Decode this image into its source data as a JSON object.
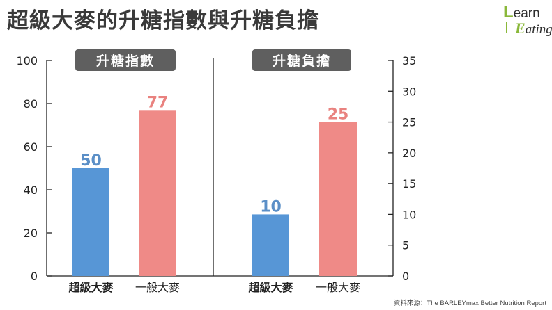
{
  "title": "超級大麥的升糖指數與升糖負擔",
  "logo": {
    "line1_cap": "L",
    "line1_rest": "earn",
    "line2_cap": "E",
    "line2_rest": "ating"
  },
  "source": "資料來源：The BARLEYmax Better Nutrition Report",
  "colors": {
    "blue": "#5796d6",
    "red": "#ef8a87",
    "blue_label": "#5b8fc7",
    "red_label": "#e9827f",
    "panel_badge": "#5f5f5f",
    "axis": "#222222"
  },
  "chart_data": [
    {
      "type": "bar",
      "title": "升糖指數",
      "categories": [
        "超級大麥",
        "一般大麥"
      ],
      "values": [
        50,
        77
      ],
      "ylim": [
        0,
        100
      ],
      "yticks": [
        0,
        20,
        40,
        60,
        80,
        100
      ],
      "axis_side": "left",
      "grid": false
    },
    {
      "type": "bar",
      "title": "升糖負擔",
      "categories": [
        "超級大麥",
        "一般大麥"
      ],
      "values": [
        10,
        25
      ],
      "ylim": [
        0,
        35
      ],
      "yticks": [
        0,
        5,
        10,
        15,
        20,
        25,
        30,
        35
      ],
      "axis_side": "right",
      "grid": false
    }
  ]
}
